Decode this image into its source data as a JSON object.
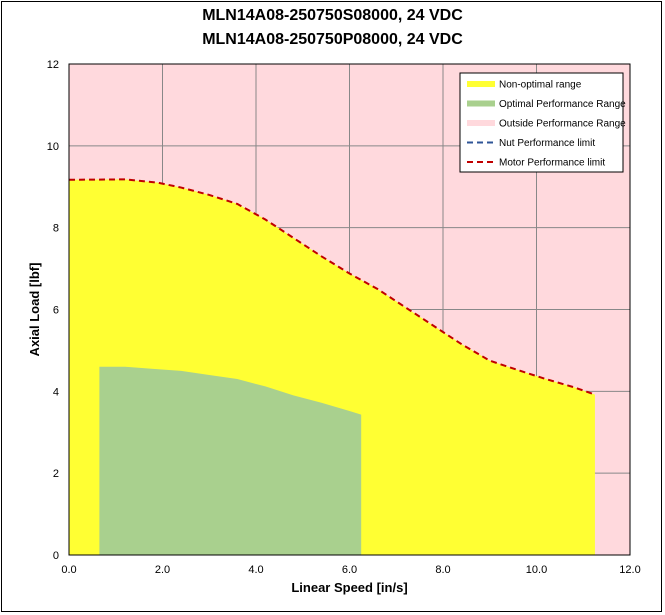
{
  "chart_data": {
    "type": "area",
    "title": [
      "MLN14A08-250750S08000, 24 VDC",
      "MLN14A08-250750P08000, 24 VDC"
    ],
    "xlabel": "Linear Speed [in/s]",
    "ylabel": "Axial Load [lbf]",
    "xlim": [
      0,
      12
    ],
    "ylim": [
      0,
      12
    ],
    "x_ticks": [
      "0.0",
      "2.0",
      "4.0",
      "6.0",
      "8.0",
      "10.0",
      "12.0"
    ],
    "y_ticks": [
      "0",
      "2",
      "4",
      "6",
      "8",
      "10",
      "12"
    ],
    "grid": true,
    "legend_position": "top-right",
    "series": [
      {
        "name": "Non-optimal range",
        "color": "#ffff33",
        "points": [
          [
            0,
            9.17
          ],
          [
            1.2,
            9.18
          ],
          [
            1.9,
            9.1
          ],
          [
            2.4,
            8.98
          ],
          [
            3.0,
            8.8
          ],
          [
            3.6,
            8.58
          ],
          [
            4.2,
            8.2
          ],
          [
            4.8,
            7.75
          ],
          [
            5.4,
            7.3
          ],
          [
            6.0,
            6.88
          ],
          [
            6.6,
            6.5
          ],
          [
            7.2,
            6.05
          ],
          [
            7.8,
            5.6
          ],
          [
            8.4,
            5.15
          ],
          [
            9.0,
            4.75
          ],
          [
            9.6,
            4.52
          ],
          [
            10.2,
            4.3
          ],
          [
            10.8,
            4.1
          ],
          [
            11.25,
            3.92
          ]
        ]
      },
      {
        "name": "Optimal Performance Range",
        "color": "#a9d08e",
        "points": [
          [
            0.65,
            4.6
          ],
          [
            1.2,
            4.6
          ],
          [
            1.8,
            4.55
          ],
          [
            2.4,
            4.5
          ],
          [
            3.0,
            4.4
          ],
          [
            3.6,
            4.3
          ],
          [
            4.2,
            4.12
          ],
          [
            4.8,
            3.9
          ],
          [
            5.4,
            3.72
          ],
          [
            6.0,
            3.52
          ],
          [
            6.25,
            3.43
          ]
        ]
      },
      {
        "name": "Outside Performance Range",
        "color": "#ffd9dd"
      },
      {
        "name": "Nut Performance limit",
        "color": "#2f5597",
        "points": []
      },
      {
        "name": "Motor Performance limit",
        "color": "#c00000",
        "points": [
          [
            0,
            9.17
          ],
          [
            1.2,
            9.18
          ],
          [
            1.9,
            9.1
          ],
          [
            2.4,
            8.98
          ],
          [
            3.0,
            8.8
          ],
          [
            3.6,
            8.58
          ],
          [
            4.2,
            8.2
          ],
          [
            4.8,
            7.75
          ],
          [
            5.4,
            7.3
          ],
          [
            6.0,
            6.88
          ],
          [
            6.6,
            6.5
          ],
          [
            7.2,
            6.05
          ],
          [
            7.8,
            5.6
          ],
          [
            8.4,
            5.15
          ],
          [
            9.0,
            4.75
          ],
          [
            9.6,
            4.52
          ],
          [
            10.2,
            4.3
          ],
          [
            10.8,
            4.1
          ],
          [
            11.25,
            3.92
          ]
        ]
      }
    ]
  }
}
